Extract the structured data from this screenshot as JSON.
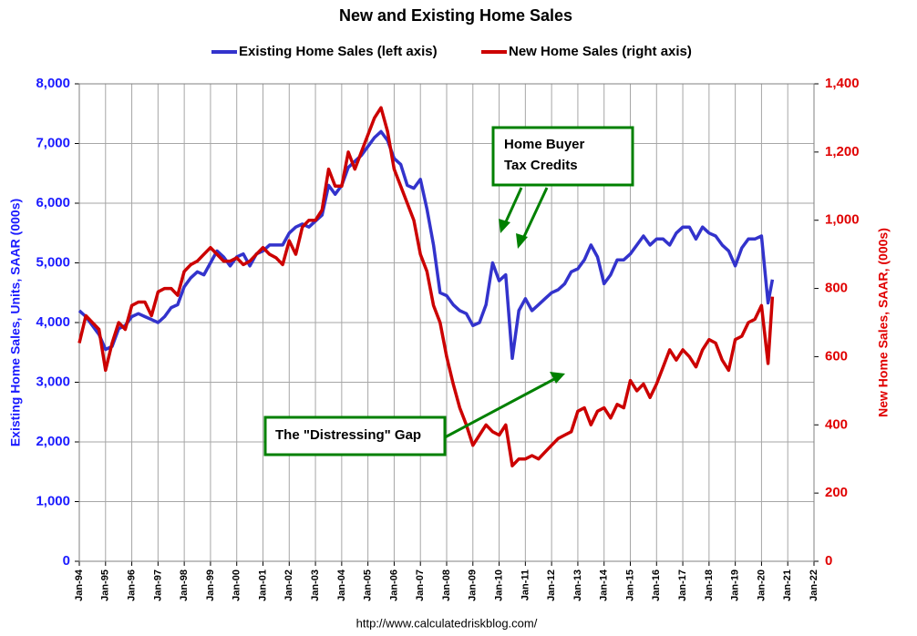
{
  "chart_data": {
    "type": "line",
    "title": "New and Existing Home Sales",
    "y_label": "Existing Home Sales, Units, SAAR (000s)",
    "y2_label": "New Home Sales, SAAR, (000s)",
    "source": "http://www.calculatedriskblog.com/",
    "annotations": [
      [
        "Home Buyer",
        "Tax Credits"
      ],
      [
        "The \"Distressing\" Gap"
      ]
    ],
    "grid": true,
    "legend": "top",
    "x": [
      "Jan-94",
      "Apr-94",
      "Jul-94",
      "Oct-94",
      "Jan-95",
      "Apr-95",
      "Jul-95",
      "Oct-95",
      "Jan-96",
      "Apr-96",
      "Jul-96",
      "Oct-96",
      "Jan-97",
      "Apr-97",
      "Jul-97",
      "Oct-97",
      "Jan-98",
      "Apr-98",
      "Jul-98",
      "Oct-98",
      "Jan-99",
      "Apr-99",
      "Jul-99",
      "Oct-99",
      "Jan-00",
      "Apr-00",
      "Jul-00",
      "Oct-00",
      "Jan-01",
      "Apr-01",
      "Jul-01",
      "Oct-01",
      "Jan-02",
      "Apr-02",
      "Jul-02",
      "Oct-02",
      "Jan-03",
      "Apr-03",
      "Jul-03",
      "Oct-03",
      "Jan-04",
      "Apr-04",
      "Jul-04",
      "Oct-04",
      "Jan-05",
      "Apr-05",
      "Jul-05",
      "Oct-05",
      "Jan-06",
      "Apr-06",
      "Jul-06",
      "Oct-06",
      "Jan-07",
      "Apr-07",
      "Jul-07",
      "Oct-07",
      "Jan-08",
      "Apr-08",
      "Jul-08",
      "Oct-08",
      "Jan-09",
      "Apr-09",
      "Jul-09",
      "Oct-09",
      "Jan-10",
      "Apr-10",
      "Jul-10",
      "Oct-10",
      "Jan-11",
      "Apr-11",
      "Jul-11",
      "Oct-11",
      "Jan-12",
      "Apr-12",
      "Jul-12",
      "Oct-12",
      "Jan-13",
      "Apr-13",
      "Jul-13",
      "Oct-13",
      "Jan-14",
      "Apr-14",
      "Jul-14",
      "Oct-14",
      "Jan-15",
      "Apr-15",
      "Jul-15",
      "Oct-15",
      "Jan-16",
      "Apr-16",
      "Jul-16",
      "Oct-16",
      "Jan-17",
      "Apr-17",
      "Jul-17",
      "Oct-17",
      "Jan-18",
      "Apr-18",
      "Jul-18",
      "Oct-18",
      "Jan-19",
      "Apr-19",
      "Jul-19",
      "Oct-19",
      "Jan-20",
      "Apr-20",
      "Jun-20"
    ],
    "xlim": [
      "Jan-94",
      "Jan-22"
    ],
    "xticks": [
      "Jan-94",
      "Jan-95",
      "Jan-96",
      "Jan-97",
      "Jan-98",
      "Jan-99",
      "Jan-00",
      "Jan-01",
      "Jan-02",
      "Jan-03",
      "Jan-04",
      "Jan-05",
      "Jan-06",
      "Jan-07",
      "Jan-08",
      "Jan-09",
      "Jan-10",
      "Jan-11",
      "Jan-12",
      "Jan-13",
      "Jan-14",
      "Jan-15",
      "Jan-16",
      "Jan-17",
      "Jan-18",
      "Jan-19",
      "Jan-20",
      "Jan-21",
      "Jan-22"
    ],
    "ylim": [
      0,
      8000
    ],
    "yticks": [
      0,
      {
        "value": 1000,
        "label": "1,000"
      },
      {
        "value": 2000,
        "label": "2,000"
      },
      {
        "value": 3000,
        "label": "3,000"
      },
      {
        "value": 4000,
        "label": "4,000"
      },
      {
        "value": 5000,
        "label": "5,000"
      },
      {
        "value": 6000,
        "label": "6,000"
      },
      {
        "value": 7000,
        "label": "7,000"
      },
      {
        "value": 8000,
        "label": "8,000"
      }
    ],
    "y2lim": [
      0,
      1400
    ],
    "y2ticks": [
      0,
      200,
      400,
      600,
      800,
      {
        "value": 1000,
        "label": "1,000"
      },
      {
        "value": 1200,
        "label": "1,200"
      },
      {
        "value": 1400,
        "label": "1,400"
      }
    ],
    "series": [
      {
        "name": "Existing Home Sales (left axis)",
        "color": "#3333cc",
        "axis": "y",
        "values": [
          4200,
          4100,
          3950,
          3800,
          3550,
          3600,
          3900,
          3950,
          4100,
          4150,
          4100,
          4050,
          4000,
          4100,
          4250,
          4300,
          4600,
          4750,
          4850,
          4800,
          5000,
          5200,
          5100,
          4950,
          5100,
          5150,
          4950,
          5150,
          5200,
          5300,
          5300,
          5300,
          5500,
          5600,
          5650,
          5600,
          5700,
          5800,
          6300,
          6150,
          6300,
          6600,
          6700,
          6800,
          6950,
          7100,
          7200,
          7050,
          6750,
          6650,
          6300,
          6250,
          6400,
          5900,
          5300,
          4500,
          4450,
          4300,
          4200,
          4150,
          3950,
          4000,
          4300,
          5000,
          4700,
          4800,
          3400,
          4200,
          4400,
          4200,
          4300,
          4400,
          4500,
          4550,
          4650,
          4850,
          4900,
          5050,
          5300,
          5100,
          4650,
          4800,
          5050,
          5050,
          5150,
          5300,
          5450,
          5300,
          5400,
          5400,
          5300,
          5500,
          5600,
          5600,
          5400,
          5600,
          5500,
          5450,
          5300,
          5200,
          4950,
          5250,
          5400,
          5400,
          5450,
          4330,
          4720
        ]
      },
      {
        "name": "New Home Sales (right axis)",
        "color": "#cc0000",
        "axis": "y2",
        "values": [
          640,
          720,
          700,
          680,
          560,
          640,
          700,
          680,
          750,
          760,
          760,
          720,
          790,
          800,
          800,
          780,
          850,
          870,
          880,
          900,
          920,
          900,
          880,
          880,
          890,
          870,
          880,
          900,
          920,
          900,
          890,
          870,
          940,
          900,
          980,
          1000,
          1000,
          1030,
          1150,
          1100,
          1100,
          1200,
          1150,
          1200,
          1250,
          1300,
          1330,
          1260,
          1150,
          1100,
          1050,
          1000,
          900,
          850,
          750,
          700,
          600,
          520,
          450,
          400,
          340,
          370,
          400,
          380,
          370,
          400,
          280,
          300,
          300,
          310,
          300,
          320,
          340,
          360,
          370,
          380,
          440,
          450,
          400,
          440,
          450,
          420,
          460,
          450,
          530,
          500,
          520,
          480,
          520,
          570,
          620,
          590,
          620,
          600,
          570,
          620,
          650,
          640,
          590,
          560,
          650,
          660,
          700,
          710,
          750,
          580,
          776
        ]
      }
    ]
  }
}
